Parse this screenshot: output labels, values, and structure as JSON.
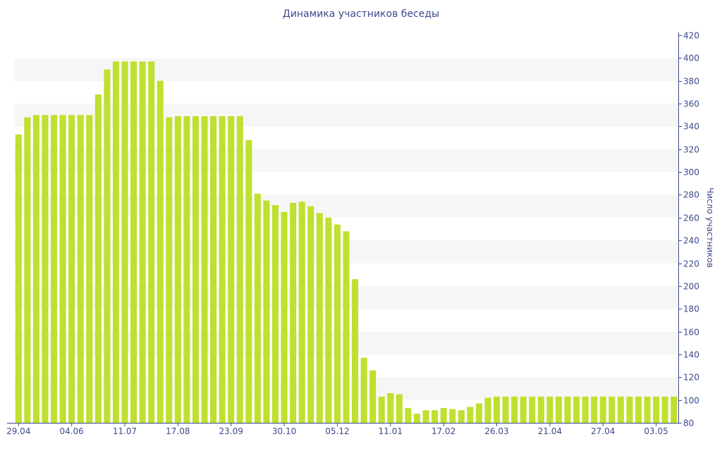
{
  "chart_data": {
    "type": "bar",
    "title": "Динамика участников беседы",
    "xlabel": "",
    "ylabel": "Число участников",
    "ylim": [
      80,
      420
    ],
    "yticks": [
      80,
      100,
      120,
      140,
      160,
      180,
      200,
      220,
      240,
      260,
      280,
      300,
      320,
      340,
      360,
      380,
      400,
      420
    ],
    "y_axis_position": "right",
    "grid": "alternating horizontal bands",
    "colors": {
      "bar": "#bfe02e",
      "band": "#f6f6f6",
      "axis": "#3b4a8c"
    },
    "x_tick_labels": [
      {
        "index": 0,
        "label": "29.04"
      },
      {
        "index": 6,
        "label": "04.06"
      },
      {
        "index": 12,
        "label": "11.07"
      },
      {
        "index": 18,
        "label": "17.08"
      },
      {
        "index": 24,
        "label": "23.09"
      },
      {
        "index": 30,
        "label": "30.10"
      },
      {
        "index": 36,
        "label": "05.12"
      },
      {
        "index": 42,
        "label": "11.01"
      },
      {
        "index": 48,
        "label": "17.02"
      },
      {
        "index": 54,
        "label": "26.03"
      },
      {
        "index": 60,
        "label": "21.04"
      },
      {
        "index": 66,
        "label": "27.04"
      },
      {
        "index": 72,
        "label": "03.05"
      }
    ],
    "values": [
      333,
      348,
      350,
      350,
      350,
      350,
      350,
      350,
      350,
      368,
      390,
      397,
      397,
      397,
      397,
      397,
      380,
      348,
      349,
      349,
      349,
      349,
      349,
      349,
      349,
      349,
      328,
      281,
      275,
      271,
      265,
      273,
      274,
      270,
      264,
      260,
      254,
      248,
      206,
      137,
      126,
      103,
      106,
      105,
      93,
      88,
      91,
      91,
      93,
      92,
      91,
      94,
      97,
      102,
      103,
      103,
      103,
      103,
      103,
      103,
      103,
      103,
      103,
      103,
      103,
      103,
      103,
      103,
      103,
      103,
      103,
      103,
      103,
      103,
      103
    ]
  }
}
